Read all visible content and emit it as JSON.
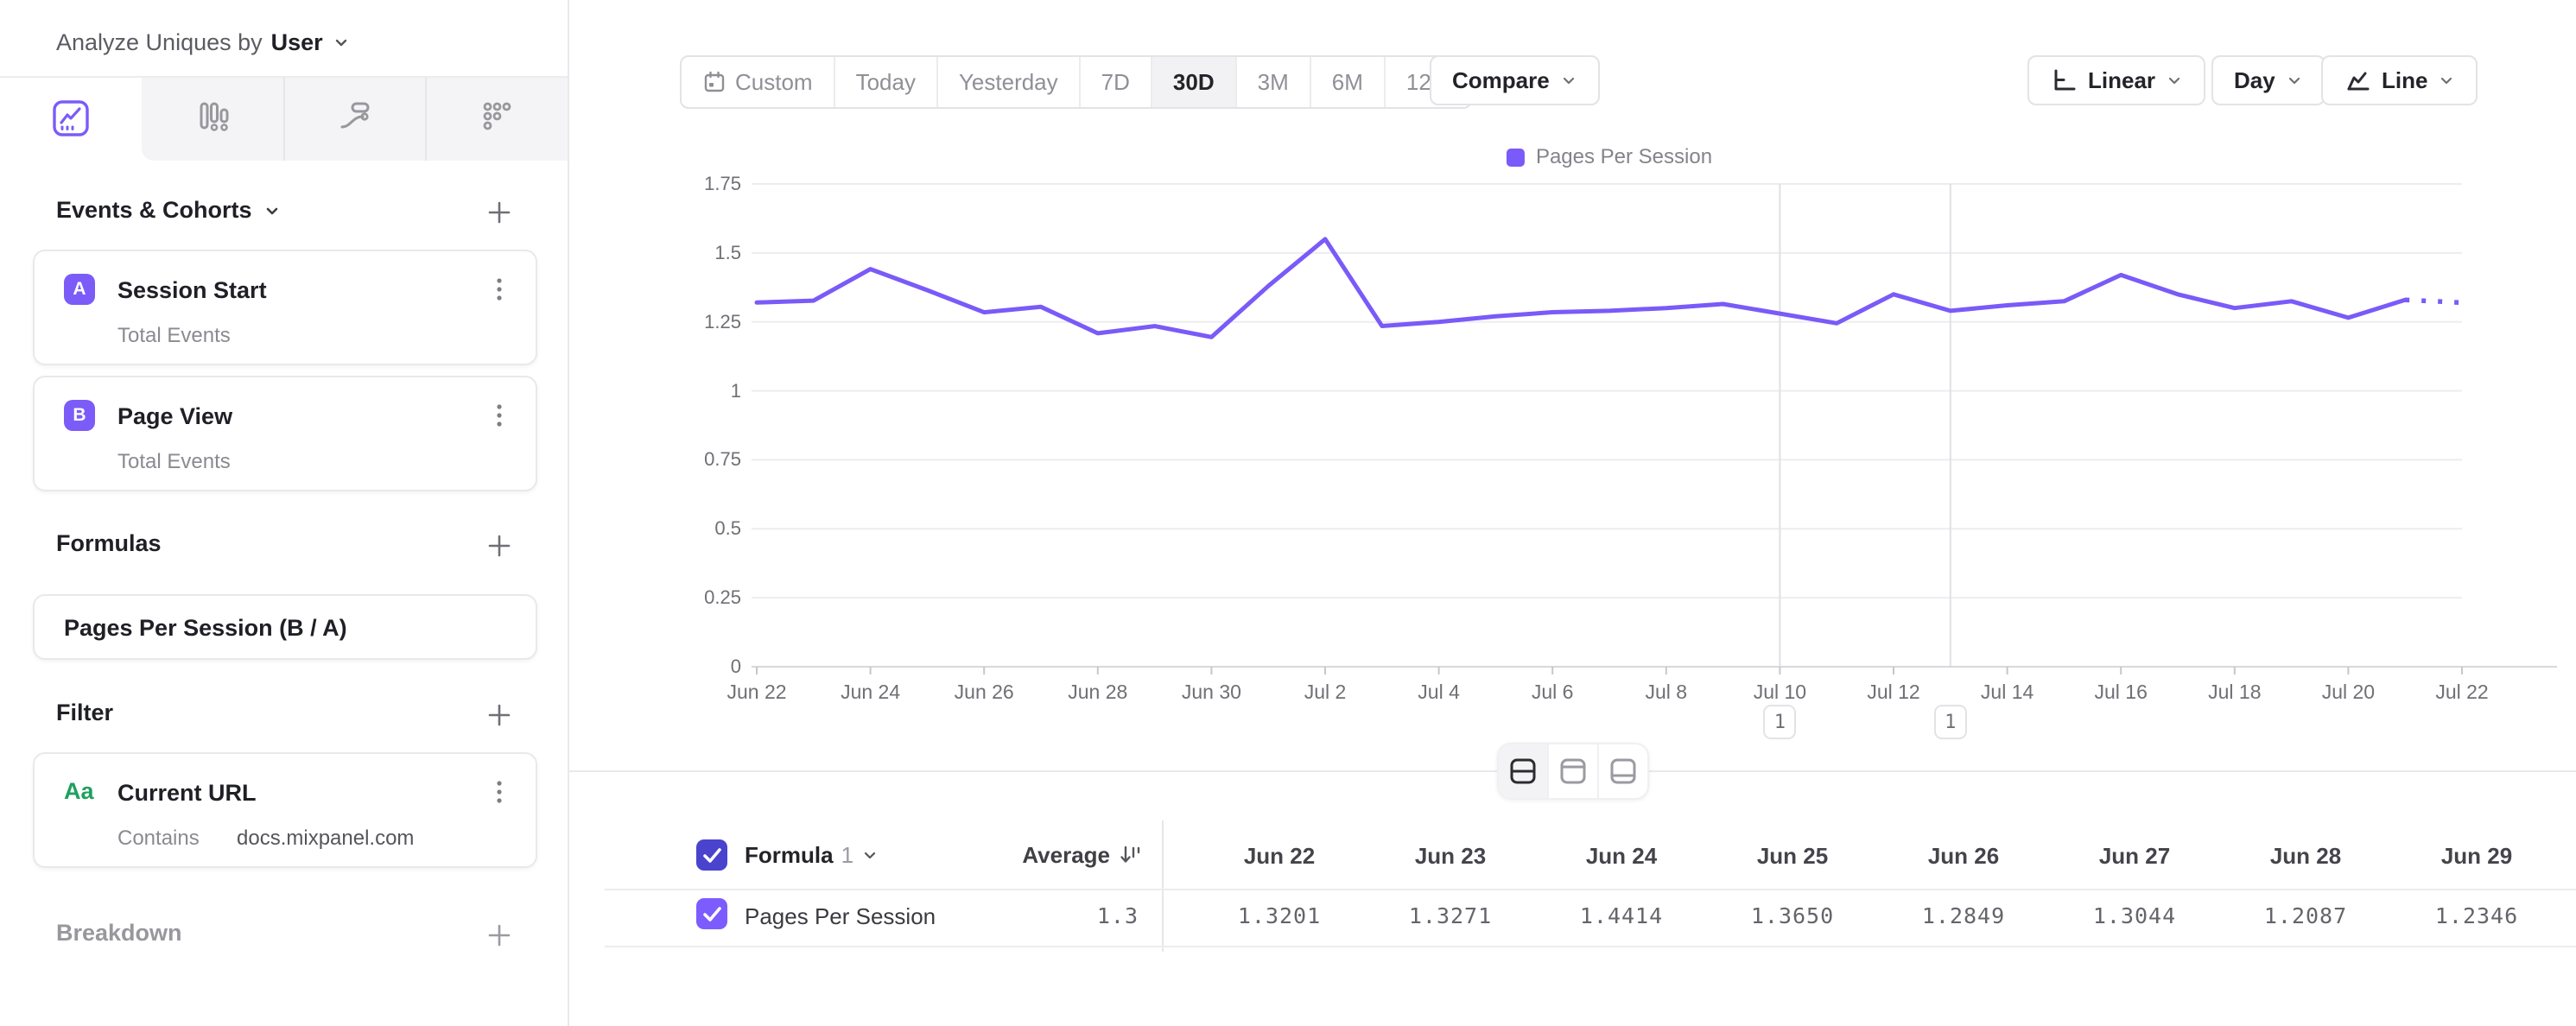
{
  "sidebar": {
    "analyze_label": "Analyze Uniques by",
    "analyze_value": "User",
    "tabs": [
      "line-chart",
      "bar-chart",
      "flow",
      "metric-grid"
    ],
    "active_tab": "line-chart",
    "sections": {
      "events": {
        "title": "Events & Cohorts",
        "items": [
          {
            "badge": "A",
            "title": "Session Start",
            "subtitle": "Total Events"
          },
          {
            "badge": "B",
            "title": "Page View",
            "subtitle": "Total Events"
          }
        ]
      },
      "formulas": {
        "title": "Formulas",
        "items": [
          {
            "title": "Pages Per Session (B / A)"
          }
        ]
      },
      "filter": {
        "title": "Filter",
        "items": [
          {
            "icon": "Aa",
            "title": "Current URL",
            "operator": "Contains",
            "value": "docs.mixpanel.com"
          }
        ]
      },
      "breakdown": {
        "title": "Breakdown"
      }
    }
  },
  "toolbar": {
    "ranges": [
      "Custom",
      "Today",
      "Yesterday",
      "7D",
      "30D",
      "3M",
      "6M",
      "12M"
    ],
    "active_range": "30D",
    "compare_label": "Compare",
    "scale_label": "Linear",
    "interval_label": "Day",
    "chart_type_label": "Line"
  },
  "chart_data": {
    "type": "line",
    "legend": "Pages Per Session",
    "legend_position": "top-center",
    "grid": true,
    "ylim": [
      0,
      1.75
    ],
    "yticks": [
      0,
      0.25,
      0.5,
      0.75,
      1,
      1.25,
      1.5,
      1.75
    ],
    "ytick_labels": [
      "0",
      "0.25",
      "0.5",
      "0.75",
      "1",
      "1.25",
      "1.5",
      "1.75"
    ],
    "categories": [
      "Jun 22",
      "Jun 23",
      "Jun 24",
      "Jun 25",
      "Jun 26",
      "Jun 27",
      "Jun 28",
      "Jun 29",
      "Jun 30",
      "Jul 1",
      "Jul 2",
      "Jul 3",
      "Jul 4",
      "Jul 5",
      "Jul 6",
      "Jul 7",
      "Jul 8",
      "Jul 9",
      "Jul 10",
      "Jul 11",
      "Jul 12",
      "Jul 13",
      "Jul 14",
      "Jul 15",
      "Jul 16",
      "Jul 17",
      "Jul 18",
      "Jul 19",
      "Jul 20",
      "Jul 21",
      "Jul 22"
    ],
    "x_tick_labels": [
      "Jun 22",
      "Jun 24",
      "Jun 26",
      "Jun 28",
      "Jun 30",
      "Jul 2",
      "Jul 4",
      "Jul 6",
      "Jul 8",
      "Jul 10",
      "Jul 12",
      "Jul 14",
      "Jul 16",
      "Jul 18",
      "Jul 20",
      "Jul 22"
    ],
    "series": [
      {
        "name": "Pages Per Session",
        "color": "#7a5af8",
        "values": [
          1.3201,
          1.3271,
          1.4414,
          1.365,
          1.2849,
          1.3044,
          1.2087,
          1.2346,
          1.195,
          1.38,
          1.55,
          1.235,
          1.25,
          1.27,
          1.285,
          1.29,
          1.3,
          1.315,
          1.28,
          1.245,
          1.35,
          1.29,
          1.31,
          1.325,
          1.42,
          1.35,
          1.3,
          1.325,
          1.265,
          1.33,
          1.32
        ],
        "dashed_from_index": 29
      }
    ],
    "annotations": [
      {
        "date": "Jul 10",
        "label": "1"
      },
      {
        "date": "Jul 13",
        "label": "1"
      }
    ]
  },
  "table": {
    "formula_label": "Formula",
    "formula_index": "1",
    "average_label": "Average",
    "row_label": "Pages Per Session",
    "average_value": "1.3",
    "columns": [
      "Jun 22",
      "Jun 23",
      "Jun 24",
      "Jun 25",
      "Jun 26",
      "Jun 27",
      "Jun 28",
      "Jun 29"
    ],
    "values": [
      "1.3201",
      "1.3271",
      "1.4414",
      "1.3650",
      "1.2849",
      "1.3044",
      "1.2087",
      "1.2346"
    ]
  },
  "colors": {
    "accent": "#7b5cf8",
    "line": "#7a5af8",
    "checkbox_header": "#4a43ce",
    "checkbox_row": "#7c5cff",
    "filter_aa": "#1fa05e"
  }
}
